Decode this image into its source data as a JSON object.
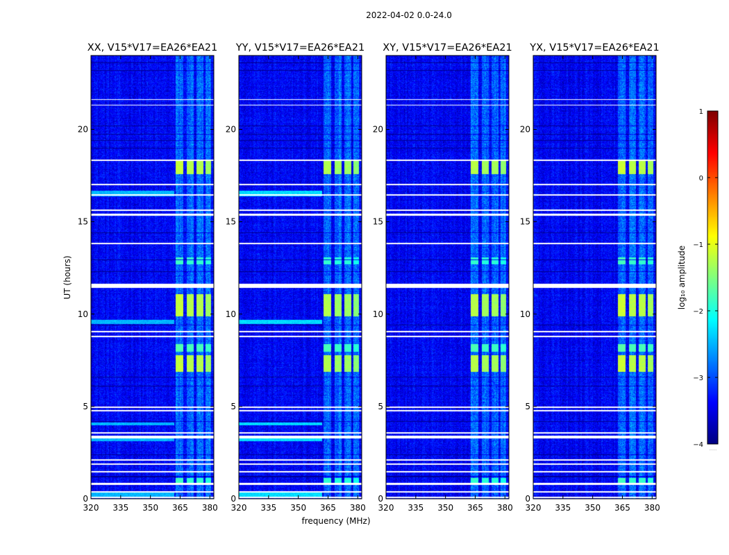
{
  "figure_title": "2022-04-02 0.0-24.0",
  "chart_data": {
    "type": "heatmap",
    "title": "2022-04-02 0.0-24.0",
    "xlabel": "frequency (MHz)",
    "ylabel": "UT (hours)",
    "xlim": [
      320,
      382
    ],
    "ylim": [
      0,
      24
    ],
    "xticks": [
      320,
      335,
      350,
      365,
      380
    ],
    "yticks": [
      0,
      5,
      10,
      15,
      20
    ],
    "colorbar": {
      "label": "log₁₀ amplitude",
      "range": [
        -4,
        1
      ],
      "ticks": [
        1,
        0,
        -1,
        -2,
        -3,
        -4
      ],
      "tick_labels": [
        "1",
        "0",
        "−1",
        "−2",
        "−3",
        "−4"
      ],
      "colormap": "jet",
      "footer": "......"
    },
    "panels": [
      {
        "title": "XX, V15*V17=EA26*EA21",
        "polarization": "XX",
        "rfi_strength": 0.8,
        "low_freq_rfi": 0.55
      },
      {
        "title": "YY, V15*V17=EA26*EA21",
        "polarization": "YY",
        "rfi_strength": 1.0,
        "low_freq_rfi": 1.0
      },
      {
        "title": "XY, V15*V17=EA26*EA21",
        "polarization": "XY",
        "rfi_strength": 0.95,
        "low_freq_rfi": 0.0
      },
      {
        "title": "YX, V15*V17=EA26*EA21",
        "polarization": "YX",
        "rfi_strength": 0.75,
        "low_freq_rfi": 0.0
      }
    ],
    "flagged_bands_hours": [
      [
        0.05,
        0.12
      ],
      [
        0.35,
        0.42
      ],
      [
        0.78,
        0.88
      ],
      [
        1.45,
        1.52
      ],
      [
        1.85,
        1.92
      ],
      [
        2.1,
        2.17
      ],
      [
        3.3,
        3.42
      ],
      [
        3.55,
        3.62
      ],
      [
        4.75,
        4.82
      ],
      [
        4.95,
        5.02
      ],
      [
        8.78,
        8.85
      ],
      [
        9.02,
        9.1
      ],
      [
        11.45,
        11.68
      ],
      [
        13.8,
        13.87
      ],
      [
        15.35,
        15.45
      ],
      [
        15.6,
        15.68
      ],
      [
        16.45,
        16.52
      ],
      [
        17.0,
        17.07
      ],
      [
        18.3,
        18.37
      ],
      [
        21.3,
        21.37
      ],
      [
        21.6,
        21.67
      ]
    ],
    "dark_bands_hours": [
      [
        1.2,
        1.24
      ],
      [
        2.4,
        2.44
      ],
      [
        4.2,
        4.24
      ],
      [
        6.1,
        6.14
      ],
      [
        6.6,
        6.63
      ],
      [
        9.4,
        9.44
      ],
      [
        12.3,
        12.34
      ],
      [
        12.95,
        12.99
      ],
      [
        14.4,
        14.44
      ],
      [
        19.0,
        19.04
      ],
      [
        19.4,
        19.43
      ],
      [
        19.75,
        19.79
      ],
      [
        20.2,
        20.24
      ],
      [
        23.2,
        23.24
      ],
      [
        23.6,
        23.63
      ]
    ],
    "rfi_channels_mhz": [
      {
        "range": [
          362.5,
          366.5
        ],
        "level": -1.25
      },
      {
        "range": [
          368.0,
          371.5
        ],
        "level": -1.35
      },
      {
        "range": [
          373.0,
          376.5
        ],
        "level": -1.35
      },
      {
        "range": [
          377.5,
          380.5
        ],
        "level": -1.45
      }
    ],
    "rfi_time_ranges_hours": [
      {
        "range": [
          0.8,
          1.15
        ],
        "boost": 0.7
      },
      {
        "range": [
          6.9,
          7.8
        ],
        "boost": 1.0
      },
      {
        "range": [
          8.0,
          8.4
        ],
        "boost": 0.75
      },
      {
        "range": [
          9.9,
          11.1
        ],
        "boost": 1.0
      },
      {
        "range": [
          12.7,
          13.1
        ],
        "boost": 0.7
      },
      {
        "range": [
          17.6,
          18.4
        ],
        "boost": 1.0
      }
    ],
    "background_level": -3.4
  }
}
